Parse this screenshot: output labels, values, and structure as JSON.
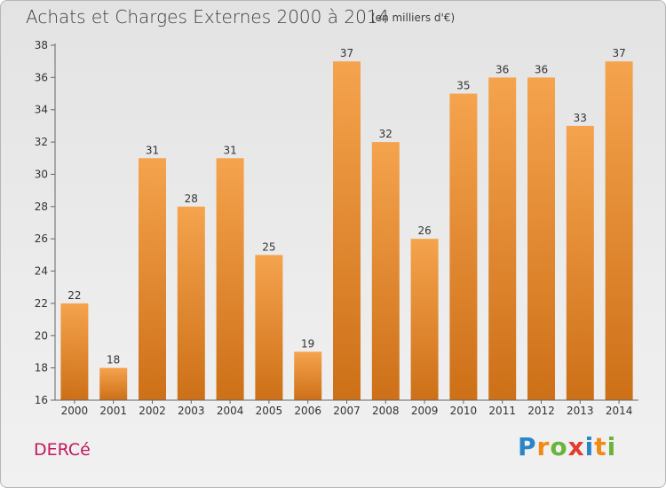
{
  "header": {
    "title": "Achats et Charges Externes 2000 à 2014",
    "subtitle": "(en milliers d'€)"
  },
  "footer": {
    "town": "DERCé",
    "brand_letters": [
      "P",
      "r",
      "o",
      "x",
      "i",
      "t",
      "i"
    ]
  },
  "colors": {
    "bar_light": "#f5a34d",
    "bar_dark": "#cd7018",
    "brand_letters": [
      "#2b86c8",
      "#f08a12",
      "#6cb33e",
      "#e13c2f",
      "#2b86c8",
      "#f08a12",
      "#6cb33e"
    ],
    "town": "#c2185b"
  },
  "chart_data": {
    "type": "bar",
    "categories": [
      "2000",
      "2001",
      "2002",
      "2003",
      "2004",
      "2005",
      "2006",
      "2007",
      "2008",
      "2009",
      "2010",
      "2011",
      "2012",
      "2013",
      "2014"
    ],
    "values": [
      22,
      18,
      31,
      28,
      31,
      25,
      19,
      37,
      32,
      26,
      35,
      36,
      36,
      33,
      37
    ],
    "data_labels": [
      "22",
      "18",
      "31",
      "28",
      "31",
      "25",
      "19",
      "37",
      "32",
      "26",
      "35",
      "36",
      "36",
      "33",
      "37"
    ],
    "ylim": [
      16,
      38
    ],
    "yticks": [
      16,
      18,
      20,
      22,
      24,
      26,
      28,
      30,
      32,
      34,
      36,
      38
    ],
    "grid": false,
    "legend": "none"
  }
}
